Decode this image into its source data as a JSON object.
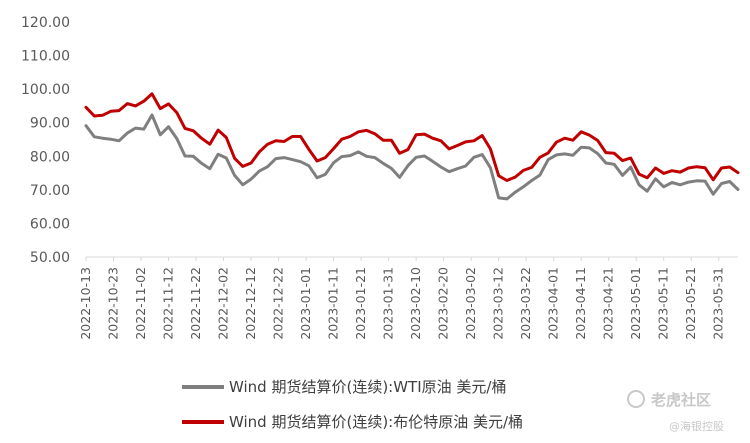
{
  "chart_data": {
    "type": "line",
    "title": "",
    "xlabel": "",
    "ylabel": "",
    "ylim": [
      50,
      120
    ],
    "yticks": [
      "50.00",
      "60.00",
      "70.00",
      "80.00",
      "90.00",
      "100.00",
      "110.00",
      "120.00"
    ],
    "grid": false,
    "legend_position": "bottom",
    "x": [
      "2022-10-13",
      "2022-10-16",
      "2022-10-19",
      "2022-10-22",
      "2022-10-25",
      "2022-10-28",
      "2022-10-31",
      "2022-11-03",
      "2022-11-06",
      "2022-11-09",
      "2022-11-12",
      "2022-11-15",
      "2022-11-18",
      "2022-11-21",
      "2022-11-24",
      "2022-11-27",
      "2022-11-30",
      "2022-12-03",
      "2022-12-06",
      "2022-12-09",
      "2022-12-12",
      "2022-12-15",
      "2022-12-18",
      "2022-12-21",
      "2022-12-24",
      "2022-12-27",
      "2022-12-30",
      "2023-01-02",
      "2023-01-05",
      "2023-01-08",
      "2023-01-11",
      "2023-01-14",
      "2023-01-17",
      "2023-01-20",
      "2023-01-23",
      "2023-01-26",
      "2023-01-29",
      "2023-02-01",
      "2023-02-04",
      "2023-02-07",
      "2023-02-10",
      "2023-02-13",
      "2023-02-16",
      "2023-02-19",
      "2023-02-22",
      "2023-02-25",
      "2023-02-28",
      "2023-03-03",
      "2023-03-06",
      "2023-03-09",
      "2023-03-12",
      "2023-03-15",
      "2023-03-18",
      "2023-03-21",
      "2023-03-24",
      "2023-03-27",
      "2023-03-30",
      "2023-04-02",
      "2023-04-05",
      "2023-04-08",
      "2023-04-11",
      "2023-04-14",
      "2023-04-17",
      "2023-04-20",
      "2023-04-23",
      "2023-04-26",
      "2023-04-29",
      "2023-05-02",
      "2023-05-05",
      "2023-05-08",
      "2023-05-11",
      "2023-05-14",
      "2023-05-17",
      "2023-05-20",
      "2023-05-23",
      "2023-05-26",
      "2023-05-29",
      "2023-06-01",
      "2023-06-04",
      "2023-06-07"
    ],
    "xticks": [
      "2022-10-13",
      "2022-10-23",
      "2022-11-02",
      "2022-11-12",
      "2022-11-22",
      "2022-12-02",
      "2022-12-12",
      "2022-12-22",
      "2023-01-01",
      "2023-01-11",
      "2023-01-21",
      "2023-01-31",
      "2023-02-10",
      "2023-02-20",
      "2023-03-02",
      "2023-03-12",
      "2023-03-22",
      "2023-04-01",
      "2023-04-11",
      "2023-04-21",
      "2023-05-01",
      "2023-05-11",
      "2023-05-21",
      "2023-05-31"
    ],
    "series": [
      {
        "name": "Wind 期货结算价(连续):WTI原油 美元/桶",
        "color": "#7f7f7f",
        "values": [
          89.1,
          85.8,
          85.4,
          85.1,
          84.6,
          86.9,
          88.4,
          88.1,
          92.3,
          86.4,
          88.8,
          85.3,
          80.1,
          80.0,
          77.9,
          76.3,
          80.6,
          79.5,
          74.3,
          71.5,
          73.2,
          75.6,
          76.9,
          79.3,
          79.6,
          79.0,
          78.4,
          77.2,
          73.6,
          74.6,
          78.1,
          79.9,
          80.2,
          81.3,
          80.0,
          79.6,
          77.9,
          76.4,
          73.7,
          77.2,
          79.7,
          80.1,
          78.5,
          76.8,
          75.4,
          76.3,
          77.1,
          79.7,
          80.5,
          76.6,
          67.6,
          67.3,
          69.3,
          70.9,
          72.8,
          74.4,
          79.0,
          80.4,
          80.7,
          80.3,
          82.7,
          82.5,
          80.8,
          78.0,
          77.6,
          74.3,
          76.8,
          71.5,
          69.6,
          73.3,
          70.9,
          72.2,
          71.5,
          72.3,
          72.7,
          72.6,
          68.7,
          71.9,
          72.5,
          70.1
        ]
      },
      {
        "name": "Wind 期货结算价(连续):布伦特原油 美元/桶",
        "color": "#c00000",
        "values": [
          94.6,
          92.0,
          92.2,
          93.4,
          93.6,
          95.7,
          95.0,
          96.4,
          98.6,
          94.2,
          95.6,
          93.0,
          88.3,
          87.6,
          85.4,
          83.6,
          87.8,
          85.6,
          79.4,
          77.0,
          78.0,
          81.3,
          83.6,
          84.6,
          84.4,
          85.9,
          85.9,
          82.1,
          78.6,
          79.6,
          82.3,
          85.1,
          85.9,
          87.3,
          87.7,
          86.7,
          84.8,
          84.8,
          80.9,
          82.0,
          86.4,
          86.6,
          85.4,
          84.6,
          82.2,
          83.2,
          84.3,
          84.6,
          86.2,
          82.2,
          74.2,
          72.8,
          73.8,
          75.8,
          76.7,
          79.7,
          81.0,
          84.2,
          85.4,
          84.8,
          87.3,
          86.3,
          84.7,
          81.1,
          80.9,
          78.7,
          79.5,
          74.7,
          73.6,
          76.5,
          74.9,
          75.7,
          75.3,
          76.5,
          76.9,
          76.6,
          73.0,
          76.5,
          76.8,
          75.1
        ]
      }
    ]
  },
  "watermark": {
    "brand": "老虎社区",
    "account": "@海银控股"
  }
}
